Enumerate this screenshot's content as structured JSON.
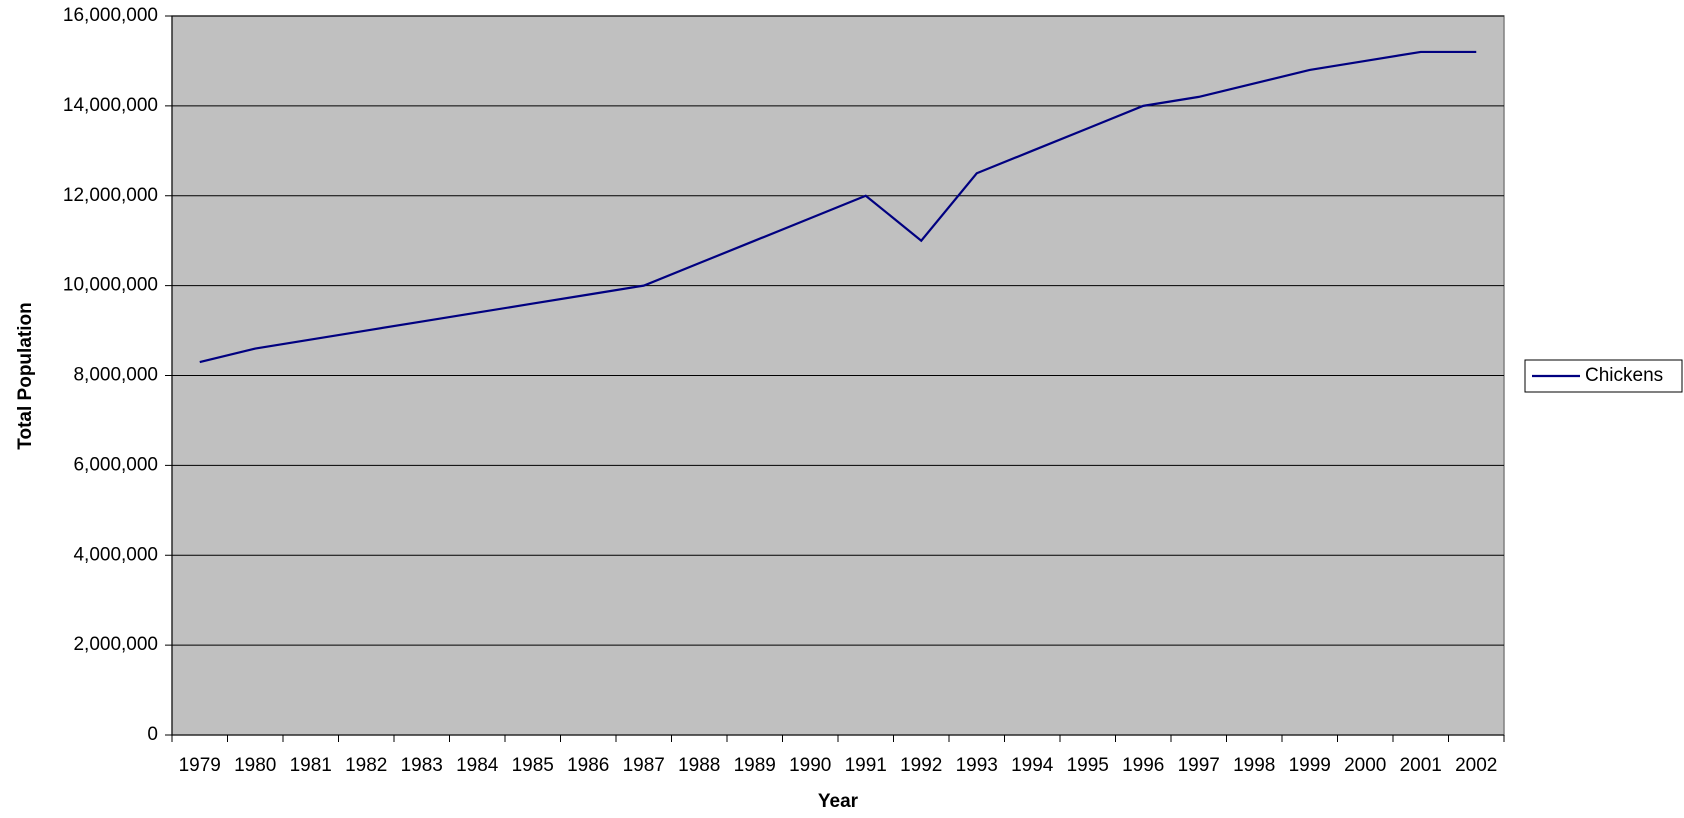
{
  "chart_data": {
    "type": "line",
    "x_label": "Year",
    "y_label": "Total Population",
    "categories": [
      "1979",
      "1980",
      "1981",
      "1982",
      "1983",
      "1984",
      "1985",
      "1986",
      "1987",
      "1988",
      "1989",
      "1990",
      "1991",
      "1992",
      "1993",
      "1994",
      "1995",
      "1996",
      "1997",
      "1998",
      "1999",
      "2000",
      "2001",
      "2002"
    ],
    "series": [
      {
        "name": "Chickens",
        "color": "#000080",
        "values": [
          8300000,
          8600000,
          8800000,
          9000000,
          9200000,
          9400000,
          9600000,
          9800000,
          10000000,
          10500000,
          11000000,
          11500000,
          12000000,
          11000000,
          12500000,
          13000000,
          13500000,
          14000000,
          14200000,
          14500000,
          14800000,
          15000000,
          15200000,
          15200000
        ]
      }
    ],
    "ylim": [
      0,
      16000000
    ],
    "yticks": [
      0,
      {
        "value": 2000000,
        "label": "2,000,000"
      },
      {
        "value": 4000000,
        "label": "4,000,000"
      },
      {
        "value": 6000000,
        "label": "6,000,000"
      },
      {
        "value": 8000000,
        "label": "8,000,000"
      },
      {
        "value": 10000000,
        "label": "10,000,000"
      },
      {
        "value": 12000000,
        "label": "12,000,000"
      },
      {
        "value": 14000000,
        "label": "14,000,000"
      },
      {
        "value": 16000000,
        "label": "16,000,000"
      }
    ],
    "grid": true,
    "legend": "right",
    "plot_background": "#c0c0c0"
  }
}
